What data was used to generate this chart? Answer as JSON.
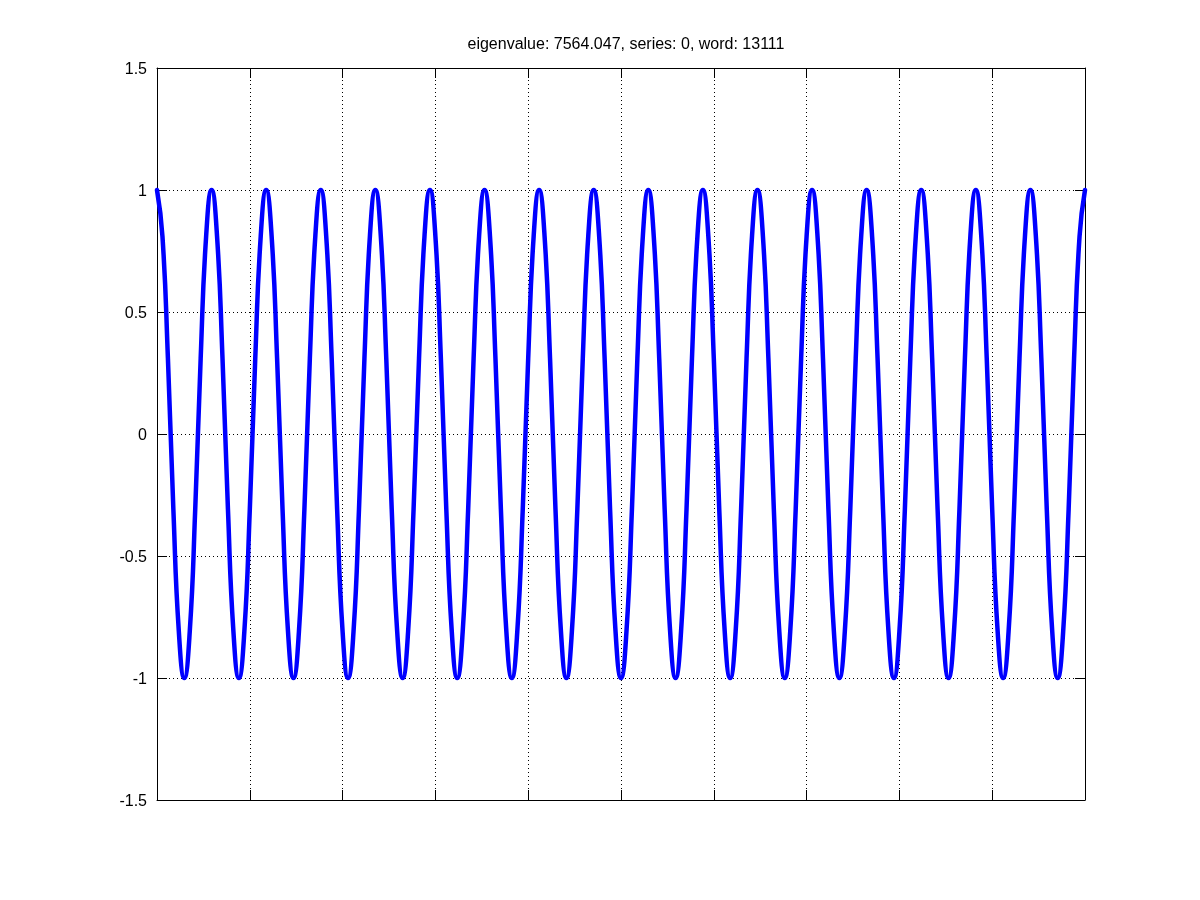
{
  "chart_data": {
    "type": "line",
    "title": "eigenvalue: 7564.047, series: 0, word: 13111",
    "categories": [
      null,
      null,
      null,
      null,
      null,
      null,
      null,
      null,
      null,
      null,
      null,
      null,
      null,
      null,
      null,
      null,
      null,
      null,
      null,
      null,
      null,
      null,
      null,
      null,
      null,
      null,
      null,
      null,
      null,
      null,
      null,
      null,
      null,
      null,
      null,
      null,
      null,
      null,
      null,
      null,
      null,
      null,
      null,
      null,
      null,
      null,
      null,
      null,
      null,
      null,
      null,
      null,
      null,
      null,
      null,
      null,
      null,
      null,
      null,
      null,
      null,
      null,
      null,
      null,
      null,
      null,
      null,
      null,
      null,
      null,
      null,
      null,
      null,
      null,
      null,
      null,
      null,
      null,
      null,
      null,
      null,
      null,
      null,
      null,
      null,
      null,
      null,
      null,
      null,
      null,
      null,
      null,
      null,
      null,
      null,
      null,
      null,
      null,
      null,
      null,
      null,
      null,
      null,
      null,
      null,
      null,
      null,
      null,
      null,
      null,
      null,
      null,
      null,
      null,
      null,
      null,
      null,
      null,
      null,
      null,
      null,
      null,
      null,
      null,
      null,
      null,
      null,
      null,
      null,
      null,
      null,
      null,
      null,
      null,
      null,
      null,
      null,
      null,
      null,
      null,
      null,
      null,
      null,
      null,
      null,
      null,
      null,
      null,
      null,
      null,
      null,
      null,
      null,
      null,
      null,
      null,
      null,
      null,
      null,
      null,
      null,
      null,
      null,
      null,
      null,
      null,
      null,
      null,
      null,
      null,
      null
    ],
    "values": [
      1,
      0.81,
      0.31,
      -0.31,
      -0.81,
      -1,
      -0.81,
      -0.31,
      0.31,
      0.81,
      1,
      0.81,
      0.31,
      -0.31,
      -0.81,
      -1,
      -0.81,
      -0.31,
      0.31,
      0.81,
      1,
      0.81,
      0.31,
      -0.31,
      -0.81,
      -1,
      -0.81,
      -0.31,
      0.31,
      0.81,
      1,
      0.81,
      0.31,
      -0.31,
      -0.81,
      -1,
      -0.81,
      -0.31,
      0.31,
      0.81,
      1,
      0.81,
      0.31,
      -0.31,
      -0.81,
      -1,
      -0.81,
      -0.31,
      0.31,
      0.81,
      1,
      0.81,
      0.31,
      -0.31,
      -0.81,
      -1,
      -0.81,
      -0.31,
      0.31,
      0.81,
      1,
      0.81,
      0.31,
      -0.31,
      -0.81,
      -1,
      -0.81,
      -0.31,
      0.31,
      0.81,
      1,
      0.81,
      0.31,
      -0.31,
      -0.81,
      -1,
      -0.81,
      -0.31,
      0.31,
      0.81,
      1,
      0.81,
      0.31,
      -0.31,
      -0.81,
      -1,
      -0.81,
      -0.31,
      0.31,
      0.81,
      1,
      0.81,
      0.31,
      -0.31,
      -0.81,
      -1,
      -0.81,
      -0.31,
      0.31,
      0.81,
      1,
      0.81,
      0.31,
      -0.31,
      -0.81,
      -1,
      -0.81,
      -0.31,
      0.31,
      0.81,
      1,
      0.81,
      0.31,
      -0.31,
      -0.81,
      -1,
      -0.81,
      -0.31,
      0.31,
      0.81,
      1,
      0.81,
      0.31,
      -0.31,
      -0.81,
      -1,
      -0.81,
      -0.31,
      0.31,
      0.81,
      1,
      0.81,
      0.31,
      -0.31,
      -0.81,
      -1,
      -0.81,
      -0.31,
      0.31,
      0.81,
      1,
      0.81,
      0.31,
      -0.31,
      -0.81,
      -1,
      -0.81,
      -0.31,
      0.31,
      0.81,
      1,
      0.81,
      0.31,
      -0.31,
      -0.81,
      -1,
      -0.81,
      -0.31,
      0.31,
      0.81,
      1,
      0.81,
      0.31,
      -0.31,
      -0.81,
      -1,
      -0.81,
      -0.31,
      0.31,
      0.81,
      1
    ],
    "color": "#0000ff",
    "marker": "none",
    "line_style": "solid",
    "ylim": [
      -1.5,
      1.5
    ],
    "yticks": [
      -1.5,
      -1,
      -0.5,
      0,
      0.5,
      1,
      1.5
    ],
    "grid": true,
    "tick_labels": "y"
  }
}
